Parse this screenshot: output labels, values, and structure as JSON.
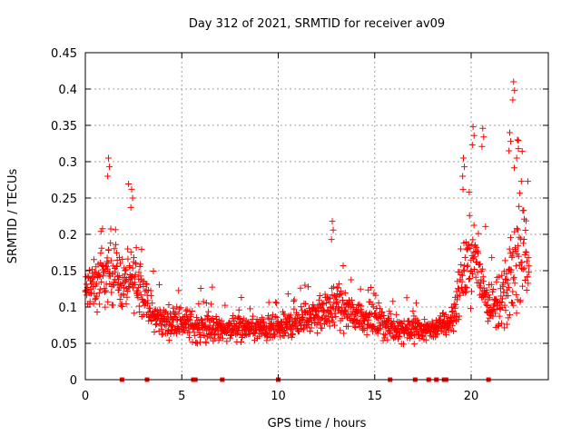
{
  "chart_data": {
    "type": "scatter",
    "title": "Day 312 of 2021, SRMTID for receiver av09",
    "xlabel": "GPS time / hours",
    "ylabel": "SRMTID / TECUs",
    "xlim": [
      0,
      24
    ],
    "ylim": [
      0,
      0.45
    ],
    "x_ticks": [
      0,
      5,
      10,
      15,
      20
    ],
    "x_tick_labels": [
      "0",
      "5",
      "10",
      "15",
      "20"
    ],
    "y_ticks": [
      0,
      0.05,
      0.1,
      0.15,
      0.2,
      0.25,
      0.3,
      0.35,
      0.4,
      0.45
    ],
    "y_tick_labels": [
      "0",
      "0.05",
      "0.1",
      "0.15",
      "0.2",
      "0.25",
      "0.3",
      "0.35",
      "0.4",
      "0.45"
    ],
    "grid": true,
    "marker": "plus",
    "color": "#ff0000",
    "profile": {
      "x": [
        0,
        0.5,
        1,
        1.5,
        2,
        2.5,
        3,
        3.5,
        4,
        5,
        6,
        7,
        8,
        9,
        10,
        11,
        12,
        13,
        14,
        15,
        16,
        17,
        18,
        19,
        19.5,
        20,
        20.5,
        21,
        21.5,
        22,
        22.5,
        23
      ],
      "level": [
        0.12,
        0.13,
        0.14,
        0.15,
        0.13,
        0.14,
        0.12,
        0.09,
        0.08,
        0.08,
        0.07,
        0.07,
        0.07,
        0.07,
        0.07,
        0.08,
        0.09,
        0.1,
        0.09,
        0.08,
        0.07,
        0.07,
        0.07,
        0.08,
        0.14,
        0.17,
        0.14,
        0.1,
        0.1,
        0.13,
        0.18,
        0.16
      ],
      "spread": [
        0.04,
        0.05,
        0.06,
        0.06,
        0.05,
        0.06,
        0.04,
        0.03,
        0.03,
        0.03,
        0.03,
        0.025,
        0.025,
        0.025,
        0.025,
        0.03,
        0.035,
        0.04,
        0.03,
        0.03,
        0.025,
        0.025,
        0.02,
        0.03,
        0.06,
        0.08,
        0.06,
        0.04,
        0.04,
        0.08,
        0.1,
        0.06
      ]
    },
    "num_points": 1500,
    "peaks": [
      {
        "x": 1.2,
        "y": 0.305
      },
      {
        "x": 2.4,
        "y": 0.262
      },
      {
        "x": 12.8,
        "y": 0.218
      },
      {
        "x": 19.6,
        "y": 0.305
      },
      {
        "x": 20.1,
        "y": 0.348
      },
      {
        "x": 20.6,
        "y": 0.346
      },
      {
        "x": 22.0,
        "y": 0.34
      },
      {
        "x": 22.2,
        "y": 0.41
      },
      {
        "x": 22.4,
        "y": 0.33
      }
    ],
    "zero_markers_x": [
      1.9,
      3.2,
      5.6,
      5.7,
      7.1,
      10.0,
      15.8,
      17.1,
      17.8,
      18.2,
      18.6,
      18.7,
      20.9
    ]
  }
}
